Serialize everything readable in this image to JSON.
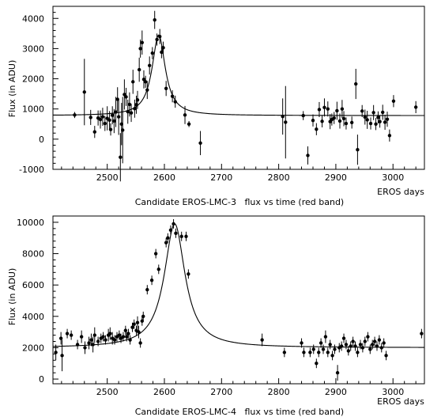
{
  "chart_data": [
    {
      "type": "scatter",
      "caption": "Candidate EROS-LMC-3   flux vs time (red band)",
      "xlabel": "EROS days",
      "ylabel": "Flux (in ADU)",
      "xlim": [
        2405,
        3055
      ],
      "ylim": [
        -1000,
        4400
      ],
      "xticks": [
        2500,
        2600,
        2700,
        2800,
        2900,
        3000
      ],
      "yticks": [
        -1000,
        0,
        1000,
        2000,
        3000,
        4000
      ],
      "fit": {
        "baseline": 780,
        "peak_time": 2590,
        "peak": 3450,
        "width": 14
      },
      "points": [
        [
          2443,
          800,
          100
        ],
        [
          2460,
          1560,
          1100
        ],
        [
          2471,
          720,
          250
        ],
        [
          2478,
          240,
          200
        ],
        [
          2484,
          700,
          250
        ],
        [
          2488,
          650,
          300
        ],
        [
          2492,
          740,
          300
        ],
        [
          2496,
          520,
          250
        ],
        [
          2500,
          690,
          400
        ],
        [
          2504,
          630,
          300
        ],
        [
          2506,
          320,
          200
        ],
        [
          2509,
          790,
          300
        ],
        [
          2512,
          600,
          400
        ],
        [
          2515,
          900,
          500
        ],
        [
          2518,
          1320,
          400
        ],
        [
          2520,
          740,
          600
        ],
        [
          2523,
          -600,
          800
        ],
        [
          2525,
          500,
          700
        ],
        [
          2527,
          300,
          1100
        ],
        [
          2530,
          1480,
          500
        ],
        [
          2533,
          1400,
          300
        ],
        [
          2536,
          910,
          400
        ],
        [
          2539,
          1150,
          400
        ],
        [
          2542,
          870,
          300
        ],
        [
          2545,
          1900,
          400
        ],
        [
          2548,
          1010,
          300
        ],
        [
          2551,
          1140,
          300
        ],
        [
          2553,
          1300,
          300
        ],
        [
          2556,
          2300,
          400
        ],
        [
          2558,
          3000,
          300
        ],
        [
          2561,
          3200,
          400
        ],
        [
          2564,
          1980,
          300
        ],
        [
          2567,
          1900,
          200
        ],
        [
          2570,
          1630,
          300
        ],
        [
          2574,
          2440,
          300
        ],
        [
          2579,
          2850,
          200
        ],
        [
          2583,
          3950,
          300
        ],
        [
          2587,
          3300,
          200
        ],
        [
          2592,
          3400,
          250
        ],
        [
          2595,
          2880,
          200
        ],
        [
          2598,
          3030,
          200
        ],
        [
          2603,
          1680,
          250
        ],
        [
          2614,
          1420,
          200
        ],
        [
          2619,
          1240,
          200
        ],
        [
          2636,
          800,
          300
        ],
        [
          2643,
          500,
          100
        ],
        [
          2663,
          -130,
          400
        ],
        [
          2807,
          750,
          600
        ],
        [
          2812,
          560,
          1200
        ],
        [
          2843,
          780,
          150
        ],
        [
          2851,
          -540,
          300
        ],
        [
          2860,
          620,
          200
        ],
        [
          2866,
          330,
          200
        ],
        [
          2871,
          980,
          250
        ],
        [
          2876,
          590,
          200
        ],
        [
          2880,
          1050,
          300
        ],
        [
          2886,
          1000,
          250
        ],
        [
          2890,
          580,
          250
        ],
        [
          2893,
          650,
          200
        ],
        [
          2897,
          700,
          200
        ],
        [
          2902,
          940,
          300
        ],
        [
          2907,
          600,
          250
        ],
        [
          2911,
          1000,
          300
        ],
        [
          2914,
          680,
          250
        ],
        [
          2918,
          520,
          200
        ],
        [
          2928,
          550,
          200
        ],
        [
          2935,
          1830,
          500
        ],
        [
          2938,
          -350,
          500
        ],
        [
          2946,
          930,
          200
        ],
        [
          2951,
          730,
          250
        ],
        [
          2955,
          640,
          300
        ],
        [
          2961,
          520,
          200
        ],
        [
          2966,
          880,
          250
        ],
        [
          2970,
          500,
          200
        ],
        [
          2974,
          720,
          200
        ],
        [
          2977,
          580,
          200
        ],
        [
          2982,
          890,
          250
        ],
        [
          2986,
          560,
          250
        ],
        [
          2990,
          660,
          250
        ],
        [
          2994,
          120,
          200
        ],
        [
          3001,
          1260,
          200
        ],
        [
          3040,
          1060,
          200
        ]
      ]
    },
    {
      "type": "scatter",
      "caption": "Candidate EROS-LMC-4   flux vs time (red band)",
      "xlabel": "EROS days",
      "ylabel": "Flux (in ADU)",
      "xlim": [
        2405,
        3055
      ],
      "ylim": [
        -300,
        10400
      ],
      "xticks": [
        2500,
        2600,
        2700,
        2800,
        2900,
        3000
      ],
      "yticks": [
        0,
        2000,
        4000,
        6000,
        8000,
        10000
      ],
      "fit": {
        "baseline": 2000,
        "peak_time": 2618,
        "peak": 9900,
        "width": 22
      },
      "points": [
        [
          2410,
          1700,
          500
        ],
        [
          2419,
          2600,
          400
        ],
        [
          2421,
          1500,
          1000
        ],
        [
          2430,
          2900,
          300
        ],
        [
          2437,
          2800,
          300
        ],
        [
          2448,
          2200,
          300
        ],
        [
          2455,
          2700,
          400
        ],
        [
          2461,
          2000,
          400
        ],
        [
          2468,
          2300,
          400
        ],
        [
          2472,
          2500,
          400
        ],
        [
          2475,
          2200,
          500
        ],
        [
          2478,
          2800,
          500
        ],
        [
          2484,
          2400,
          300
        ],
        [
          2489,
          2600,
          300
        ],
        [
          2493,
          2700,
          300
        ],
        [
          2497,
          2500,
          300
        ],
        [
          2502,
          2800,
          400
        ],
        [
          2505,
          2900,
          400
        ],
        [
          2509,
          2600,
          400
        ],
        [
          2513,
          2500,
          300
        ],
        [
          2517,
          2700,
          300
        ],
        [
          2521,
          2800,
          300
        ],
        [
          2524,
          2600,
          300
        ],
        [
          2528,
          2700,
          300
        ],
        [
          2532,
          3100,
          300
        ],
        [
          2534,
          2700,
          300
        ],
        [
          2537,
          2900,
          300
        ],
        [
          2540,
          2500,
          300
        ],
        [
          2544,
          3300,
          300
        ],
        [
          2547,
          3500,
          300
        ],
        [
          2551,
          3100,
          300
        ],
        [
          2553,
          3600,
          400
        ],
        [
          2555,
          3000,
          400
        ],
        [
          2558,
          2300,
          300
        ],
        [
          2561,
          3700,
          300
        ],
        [
          2563,
          4000,
          300
        ],
        [
          2570,
          5700,
          300
        ],
        [
          2578,
          6300,
          300
        ],
        [
          2585,
          8000,
          300
        ],
        [
          2590,
          7000,
          300
        ],
        [
          2603,
          8700,
          300
        ],
        [
          2606,
          9000,
          300
        ],
        [
          2611,
          9500,
          300
        ],
        [
          2616,
          9900,
          300
        ],
        [
          2620,
          9300,
          300
        ],
        [
          2630,
          9100,
          300
        ],
        [
          2638,
          9100,
          300
        ],
        [
          2642,
          6700,
          300
        ],
        [
          2771,
          2500,
          400
        ],
        [
          2810,
          1700,
          300
        ],
        [
          2840,
          2300,
          300
        ],
        [
          2844,
          1700,
          300
        ],
        [
          2855,
          1700,
          300
        ],
        [
          2861,
          1900,
          300
        ],
        [
          2866,
          1000,
          300
        ],
        [
          2870,
          1700,
          300
        ],
        [
          2874,
          2300,
          300
        ],
        [
          2878,
          1900,
          300
        ],
        [
          2882,
          2700,
          400
        ],
        [
          2886,
          1700,
          300
        ],
        [
          2890,
          2200,
          300
        ],
        [
          2894,
          1500,
          300
        ],
        [
          2898,
          1900,
          300
        ],
        [
          2903,
          400,
          500
        ],
        [
          2906,
          2000,
          300
        ],
        [
          2910,
          2100,
          300
        ],
        [
          2914,
          2600,
          300
        ],
        [
          2918,
          2200,
          300
        ],
        [
          2922,
          1800,
          300
        ],
        [
          2926,
          2100,
          300
        ],
        [
          2930,
          2400,
          300
        ],
        [
          2934,
          2100,
          300
        ],
        [
          2938,
          1700,
          300
        ],
        [
          2943,
          2200,
          300
        ],
        [
          2947,
          2000,
          300
        ],
        [
          2951,
          2400,
          300
        ],
        [
          2956,
          2700,
          300
        ],
        [
          2960,
          1900,
          300
        ],
        [
          2964,
          2200,
          300
        ],
        [
          2968,
          2400,
          300
        ],
        [
          2972,
          2100,
          300
        ],
        [
          2976,
          2500,
          300
        ],
        [
          2980,
          2000,
          300
        ],
        [
          2984,
          2300,
          300
        ],
        [
          2988,
          1500,
          300
        ],
        [
          3050,
          2900,
          300
        ]
      ]
    }
  ]
}
